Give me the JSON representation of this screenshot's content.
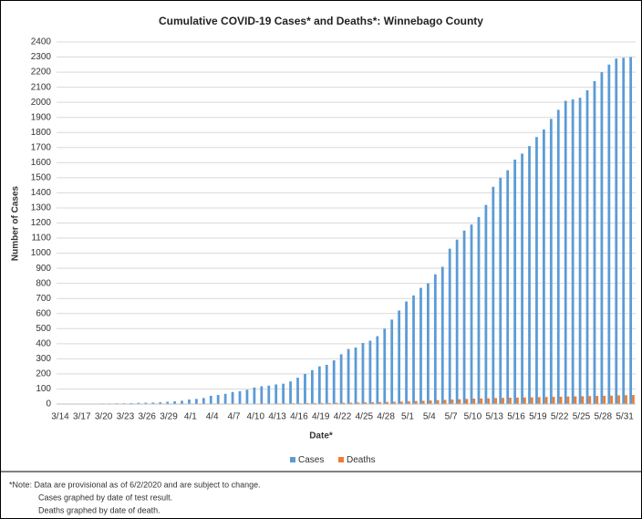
{
  "chart_data": {
    "type": "bar",
    "title": "Cumulative COVID-19 Cases* and Deaths*: Winnebago County",
    "x_label": "Date*",
    "y_label": "Number of Cases",
    "categories": [
      "3/14",
      null,
      null,
      "3/17",
      null,
      null,
      "3/20",
      null,
      null,
      "3/23",
      null,
      null,
      "3/26",
      null,
      null,
      "3/29",
      null,
      null,
      "4/1",
      null,
      null,
      "4/4",
      null,
      null,
      "4/7",
      null,
      null,
      "4/10",
      null,
      null,
      "4/13",
      null,
      null,
      "4/16",
      null,
      null,
      "4/19",
      null,
      null,
      "4/22",
      null,
      null,
      "4/25",
      null,
      null,
      "4/28",
      null,
      null,
      "5/1",
      null,
      null,
      "5/4",
      null,
      null,
      "5/7",
      null,
      null,
      "5/10",
      null,
      null,
      "5/13",
      null,
      null,
      "5/16",
      null,
      null,
      "5/19",
      null,
      null,
      "5/22",
      null,
      null,
      "5/25",
      null,
      null,
      "5/28",
      null,
      null,
      "5/31",
      null
    ],
    "series": [
      {
        "name": "Cases",
        "color": "#5b9bd5",
        "values": [
          1,
          1,
          2,
          2,
          3,
          3,
          4,
          4,
          5,
          5,
          6,
          8,
          9,
          10,
          12,
          15,
          18,
          22,
          30,
          34,
          40,
          55,
          60,
          68,
          80,
          85,
          95,
          110,
          118,
          122,
          130,
          135,
          150,
          175,
          200,
          225,
          250,
          260,
          290,
          330,
          365,
          375,
          405,
          420,
          450,
          500,
          560,
          620,
          680,
          720,
          770,
          800,
          860,
          910,
          1030,
          1090,
          1150,
          1190,
          1240,
          1320,
          1440,
          1500,
          1550,
          1620,
          1660,
          1710,
          1770,
          1820,
          1890,
          1950,
          2010,
          2020,
          2030,
          2080,
          2140,
          2200,
          2250,
          2290,
          2295,
          2300
        ]
      },
      {
        "name": "Deaths",
        "color": "#ed7d31",
        "values": [
          0,
          0,
          0,
          0,
          0,
          0,
          0,
          0,
          0,
          0,
          0,
          0,
          0,
          0,
          0,
          0,
          0,
          0,
          0,
          0,
          0,
          0,
          0,
          0,
          1,
          1,
          2,
          2,
          3,
          3,
          4,
          4,
          5,
          5,
          6,
          6,
          7,
          7,
          8,
          8,
          9,
          10,
          11,
          12,
          13,
          14,
          15,
          16,
          18,
          20,
          22,
          24,
          26,
          28,
          30,
          32,
          34,
          36,
          37,
          38,
          40,
          41,
          42,
          43,
          44,
          45,
          46,
          47,
          48,
          49,
          50,
          51,
          52,
          53,
          54,
          55,
          56,
          58,
          59,
          60
        ]
      }
    ],
    "ylim": [
      0,
      2400
    ],
    "yticks": [
      0,
      100,
      200,
      300,
      400,
      500,
      600,
      700,
      800,
      900,
      1000,
      1100,
      1200,
      1300,
      1400,
      1500,
      1600,
      1700,
      1800,
      1900,
      2000,
      2100,
      2200,
      2300,
      2400
    ],
    "grid": true,
    "legend": "bottom",
    "notes": [
      "*Note: Data are provisional as of 6/2/2020 and are subject to change.",
      "Cases graphed by date of test result.",
      "Deaths graphed by date of death."
    ]
  }
}
